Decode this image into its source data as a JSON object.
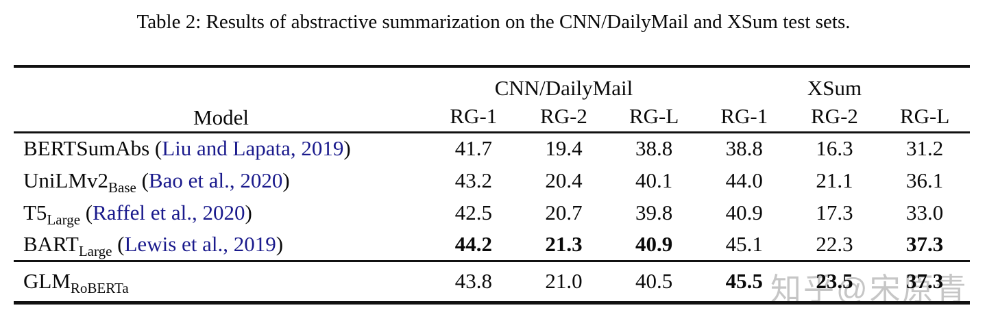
{
  "caption": "Table 2: Results of abstractive summarization on the CNN/DailyMail and XSum test sets.",
  "table": {
    "model_header": "Model",
    "groups": [
      {
        "label": "CNN/DailyMail"
      },
      {
        "label": "XSum"
      }
    ],
    "subheaders": [
      "RG-1",
      "RG-2",
      "RG-L",
      "RG-1",
      "RG-2",
      "RG-L"
    ],
    "rows": [
      {
        "model": "BERTSumAbs",
        "subscript": "",
        "citation": "Liu and Lapata, 2019",
        "values": [
          "41.7",
          "19.4",
          "38.8",
          "38.8",
          "16.3",
          "31.2"
        ],
        "bold": [
          false,
          false,
          false,
          false,
          false,
          false
        ]
      },
      {
        "model": "UniLMv2",
        "subscript": "Base",
        "citation": "Bao et al., 2020",
        "values": [
          "43.2",
          "20.4",
          "40.1",
          "44.0",
          "21.1",
          "36.1"
        ],
        "bold": [
          false,
          false,
          false,
          false,
          false,
          false
        ]
      },
      {
        "model": "T5",
        "subscript": "Large",
        "citation": "Raffel et al., 2020",
        "values": [
          "42.5",
          "20.7",
          "39.8",
          "40.9",
          "17.3",
          "33.0"
        ],
        "bold": [
          false,
          false,
          false,
          false,
          false,
          false
        ]
      },
      {
        "model": "BART",
        "subscript": "Large",
        "citation": "Lewis et al., 2019",
        "values": [
          "44.2",
          "21.3",
          "40.9",
          "45.1",
          "22.3",
          "37.3"
        ],
        "bold": [
          true,
          true,
          true,
          false,
          false,
          true
        ]
      }
    ],
    "footer_rows": [
      {
        "model": "GLM",
        "subscript": "RoBERTa",
        "citation": null,
        "values": [
          "43.8",
          "21.0",
          "40.5",
          "45.5",
          "23.5",
          "37.3"
        ],
        "bold": [
          false,
          false,
          false,
          true,
          true,
          true
        ]
      }
    ]
  },
  "watermark": {
    "text": "知乎@宋原青",
    "color": "#c6c6c6"
  },
  "colors": {
    "citation_link": "#1a1a8c",
    "text": "#0a0a0a",
    "rule": "#111111"
  }
}
